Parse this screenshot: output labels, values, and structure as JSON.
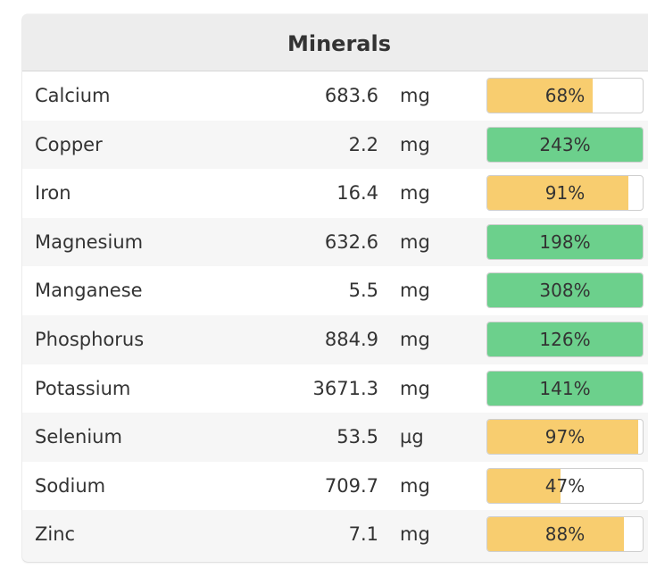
{
  "panel": {
    "title": "Minerals"
  },
  "colors": {
    "below_target": "#f8cd6f",
    "above_target": "#6cd08c"
  },
  "rows": [
    {
      "name": "Calcium",
      "amount": "683.6",
      "unit": "mg",
      "percent_label": "68%",
      "percent": 68
    },
    {
      "name": "Copper",
      "amount": "2.2",
      "unit": "mg",
      "percent_label": "243%",
      "percent": 243
    },
    {
      "name": "Iron",
      "amount": "16.4",
      "unit": "mg",
      "percent_label": "91%",
      "percent": 91
    },
    {
      "name": "Magnesium",
      "amount": "632.6",
      "unit": "mg",
      "percent_label": "198%",
      "percent": 198
    },
    {
      "name": "Manganese",
      "amount": "5.5",
      "unit": "mg",
      "percent_label": "308%",
      "percent": 308
    },
    {
      "name": "Phosphorus",
      "amount": "884.9",
      "unit": "mg",
      "percent_label": "126%",
      "percent": 126
    },
    {
      "name": "Potassium",
      "amount": "3671.3",
      "unit": "mg",
      "percent_label": "141%",
      "percent": 141
    },
    {
      "name": "Selenium",
      "amount": "53.5",
      "unit": "µg",
      "percent_label": "97%",
      "percent": 97
    },
    {
      "name": "Sodium",
      "amount": "709.7",
      "unit": "mg",
      "percent_label": "47%",
      "percent": 47
    },
    {
      "name": "Zinc",
      "amount": "7.1",
      "unit": "mg",
      "percent_label": "88%",
      "percent": 88
    }
  ]
}
